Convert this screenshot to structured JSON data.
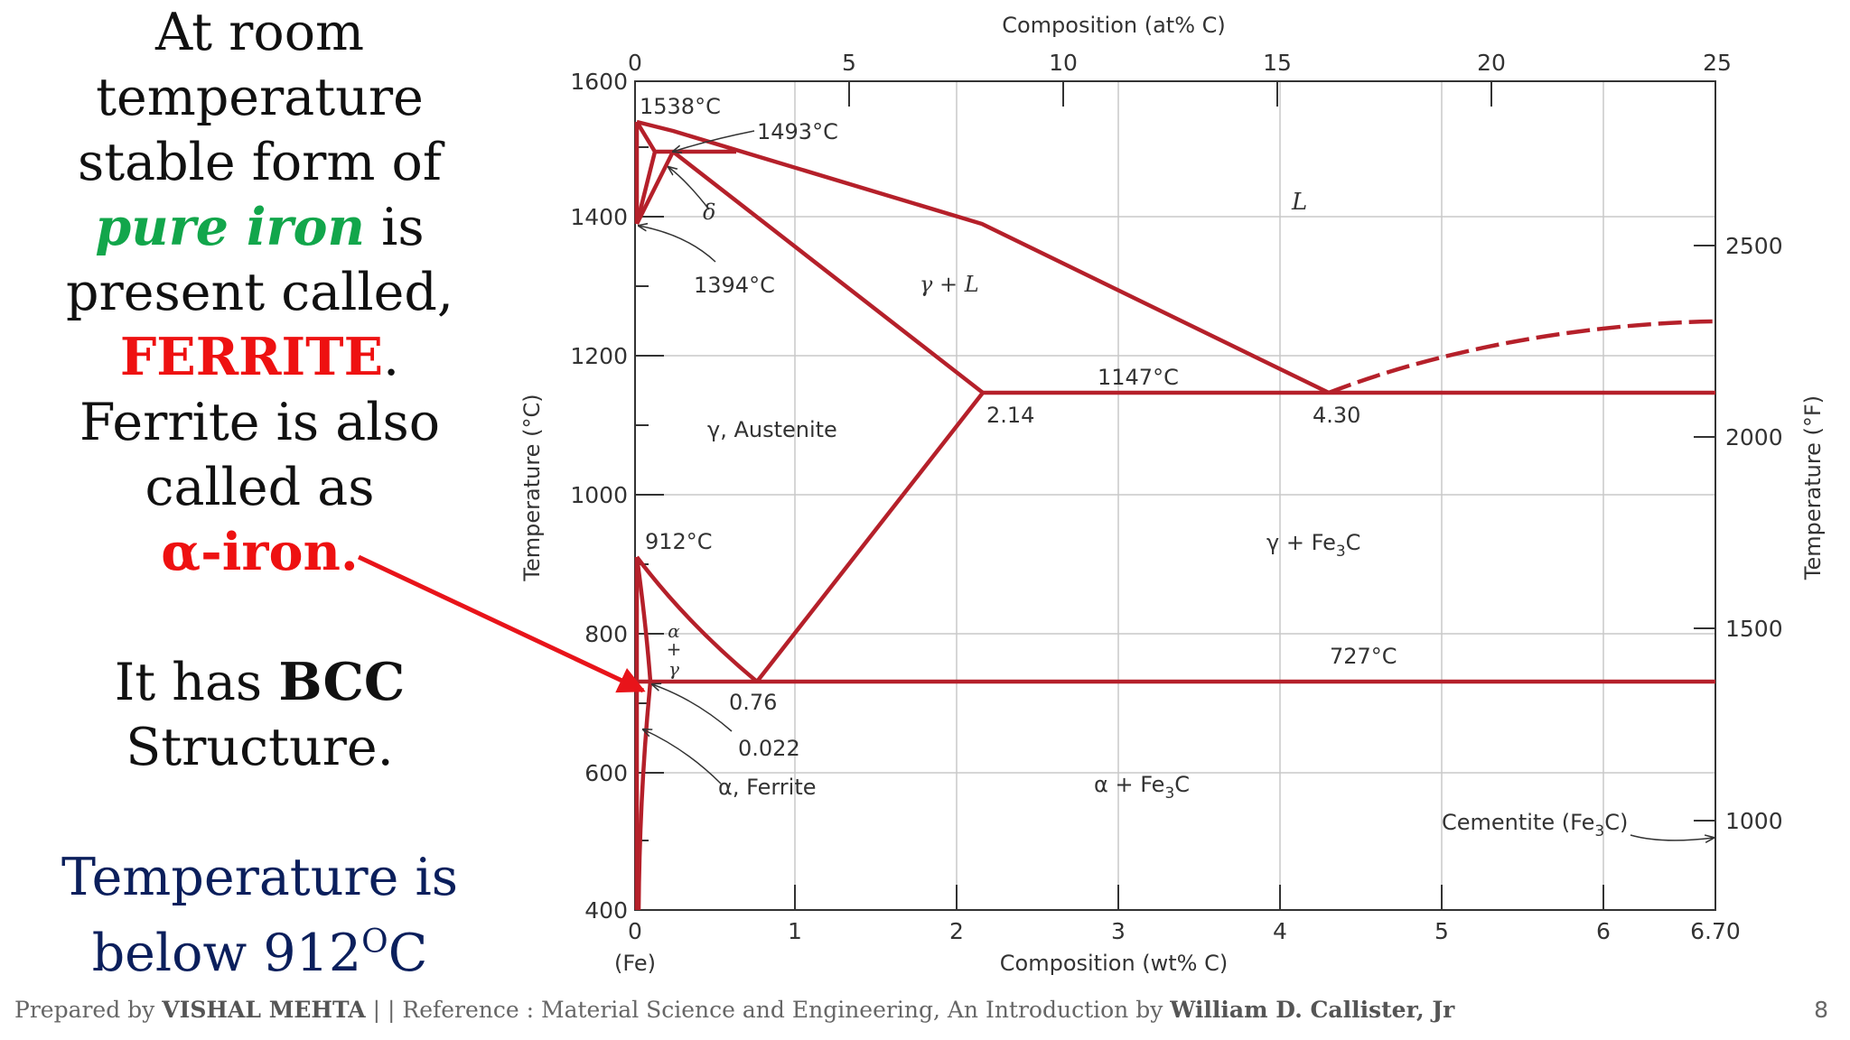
{
  "left_text": {
    "l1": "At room",
    "l2": "temperature",
    "l3": "stable form of",
    "l4_em": "pure iron",
    "l4_rest": " is",
    "l5": "present called,",
    "l6_em": "FERRITE",
    "l6_rest": ".",
    "l7": "Ferrite is also",
    "l8": "called as",
    "l9": "α-iron.",
    "l10_a": "It has ",
    "l10_b": "BCC",
    "l11": "Structure.",
    "l12": "Temperature is",
    "l13_a": "below 912",
    "l13_sup": "O",
    "l13_b": "C"
  },
  "footer": {
    "prefix": "Prepared by ",
    "author": "VISHAL MEHTA",
    "middle": " | | Reference : Material Science and Engineering, An Introduction by ",
    "book_author": "William D. Callister, Jr",
    "page": "8"
  },
  "diagram": {
    "top_axis_label": "Composition (at% C)",
    "top_ticks": [
      "0",
      "5",
      "10",
      "15",
      "20",
      "25"
    ],
    "bottom_axis_label": "Composition (wt% C)",
    "bottom_ticks": [
      "0",
      "1",
      "2",
      "3",
      "4",
      "5",
      "6",
      "6.70"
    ],
    "bottom_sublabel": "(Fe)",
    "left_axis_label": "Temperature (°C)",
    "left_ticks": [
      "400",
      "600",
      "800",
      "1000",
      "1200",
      "1400",
      "1600"
    ],
    "right_axis_label": "Temperature (°F)",
    "right_ticks": [
      "1000",
      "1500",
      "2000",
      "2500"
    ],
    "labels": {
      "t1538": "1538°C",
      "t1493": "1493°C",
      "delta": "δ",
      "t1394": "1394°C",
      "liquid": "L",
      "gamma_l": "γ + L",
      "t1147": "1147°C",
      "c214": "2.14",
      "c430": "4.30",
      "austenite": "γ, Austenite",
      "t912": "912°C",
      "gamma_fe3c_a": "γ + Fe",
      "gamma_fe3c_sub": "3",
      "gamma_fe3c_b": "C",
      "ag_alpha": "α",
      "ag_plus": "+",
      "ag_gamma": "γ",
      "t727": "727°C",
      "c076": "0.76",
      "c0022": "0.022",
      "ferrite": "α, Ferrite",
      "alpha_fe3c_a": "α + Fe",
      "alpha_fe3c_sub": "3",
      "alpha_fe3c_b": "C",
      "cementite_a": "Cementite (Fe",
      "cementite_sub": "3",
      "cementite_b": "C)"
    },
    "colors": {
      "phase_line": "#b5202a",
      "arrow": "#e8141a",
      "axis": "#333333",
      "grid": "#c9c9c9"
    }
  }
}
